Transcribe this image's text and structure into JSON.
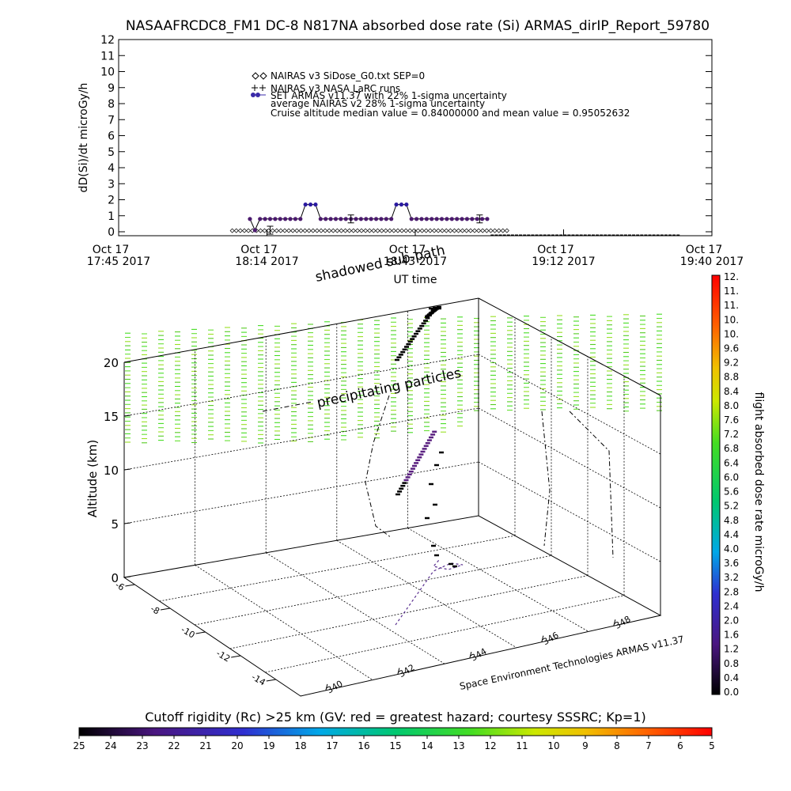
{
  "title": "NASAAFRCDC8_FM1 DC-8   N817NA absorbed dose rate (Si) ARMAS_dirIP_Report_59780",
  "chart_data": [
    {
      "type": "line",
      "ylabel": "dD(Si)/dt microGy/h",
      "xlabel": "UT time",
      "ylim": [
        0,
        12
      ],
      "yticks": [
        "0",
        "1",
        "2",
        "3",
        "4",
        "5",
        "6",
        "7",
        "8",
        "9",
        "10",
        "11",
        "12"
      ],
      "xtick_labels": [
        [
          "Oct 17",
          "17:45 2017"
        ],
        [
          "Oct 17",
          "18:14 2017"
        ],
        [
          "Oct 17",
          "18:43 2017"
        ],
        [
          "Oct 17",
          "19:12 2017"
        ],
        [
          "Oct 17",
          "19:40 2017"
        ]
      ],
      "legend": [
        "NAIRAS v3 SiDose_G0.txt SEP=0",
        "NAIRAS v3 NASA LaRC runs",
        "SET ARMAS v11.37 with 22% 1-sigma uncertainty",
        "average NAIRAS v2 28% 1-sigma uncertainty",
        "Cruise altitude median value = 0.84000000 and mean value = 0.95052632"
      ],
      "series": [
        {
          "name": "SET ARMAS v11.37 with 22% 1-sigma uncertainty",
          "color": "#3a2aa8",
          "x_minutes_after_1745": [
            52,
            54,
            56,
            58,
            60,
            62,
            64,
            66,
            68,
            70,
            72,
            74,
            76,
            78,
            80,
            82,
            84,
            86,
            88,
            90,
            92,
            94,
            96,
            98,
            100,
            102,
            104,
            106,
            108,
            110,
            112,
            114,
            116,
            118,
            120,
            122,
            124,
            126,
            128,
            130,
            132,
            134,
            136,
            138,
            140,
            142,
            144,
            146
          ],
          "values": [
            0.8,
            0.1,
            0.8,
            0.8,
            0.8,
            0.8,
            0.8,
            0.8,
            0.8,
            0.8,
            0.8,
            1.7,
            1.7,
            1.7,
            0.8,
            0.8,
            0.8,
            0.8,
            0.8,
            0.8,
            0.8,
            0.8,
            0.8,
            0.8,
            0.8,
            0.8,
            0.8,
            0.8,
            0.8,
            1.7,
            1.7,
            1.7,
            0.8,
            0.8,
            0.8,
            0.8,
            0.8,
            0.8,
            0.8,
            0.8,
            0.8,
            0.8,
            0.8,
            0.8,
            0.8,
            0.8,
            0.8,
            0.8
          ]
        },
        {
          "name": "NAIRAS v3 SiDose_G0.txt SEP=0",
          "color": "#000000",
          "x_range_minutes_after_1745": [
            45,
            155
          ],
          "value": 0.02
        },
        {
          "name": "NAIRAS v3 NASA LaRC runs",
          "color": "#000000",
          "x_range_minutes_after_1745": [
            148,
            223
          ],
          "value": -0.3
        }
      ]
    },
    {
      "type": "scatter",
      "ylabel": "Altitude (km)",
      "zticks": [
        "0",
        "5",
        "10",
        "15",
        "20"
      ],
      "lat_ticks": [
        "-6",
        "-8",
        "-10",
        "-12",
        "-14"
      ],
      "lon_ticks": [
        "340",
        "342",
        "344",
        "346",
        "348"
      ],
      "annotations": [
        "shadowed sub-path",
        "precipitating particles"
      ],
      "credit": "Space Environment Technologies ARMAS v11.37"
    }
  ],
  "colorbar_right": {
    "label": "flight absorbed dose rate microGy/h",
    "ticks": [
      "0.0",
      "0.4",
      "0.8",
      "1.2",
      "1.6",
      "2.0",
      "2.4",
      "2.8",
      "3.2",
      "3.6",
      "4.0",
      "4.4",
      "4.8",
      "5.2",
      "5.6",
      "6.0",
      "6.4",
      "6.8",
      "7.2",
      "7.6",
      "8.0",
      "8.4",
      "8.8",
      "9.2",
      "9.6",
      "10.",
      "10.",
      "11.",
      "11.",
      "12."
    ]
  },
  "colorbar_bottom": {
    "label": "Cutoff rigidity (Rc) >25 km (GV: red = greatest hazard; courtesy SSSRC; Kp=1)",
    "ticks": [
      "25",
      "24",
      "23",
      "22",
      "21",
      "20",
      "19",
      "18",
      "17",
      "16",
      "15",
      "14",
      "13",
      "12",
      "11",
      "10",
      "9",
      "8",
      "7",
      "6",
      "5"
    ]
  }
}
